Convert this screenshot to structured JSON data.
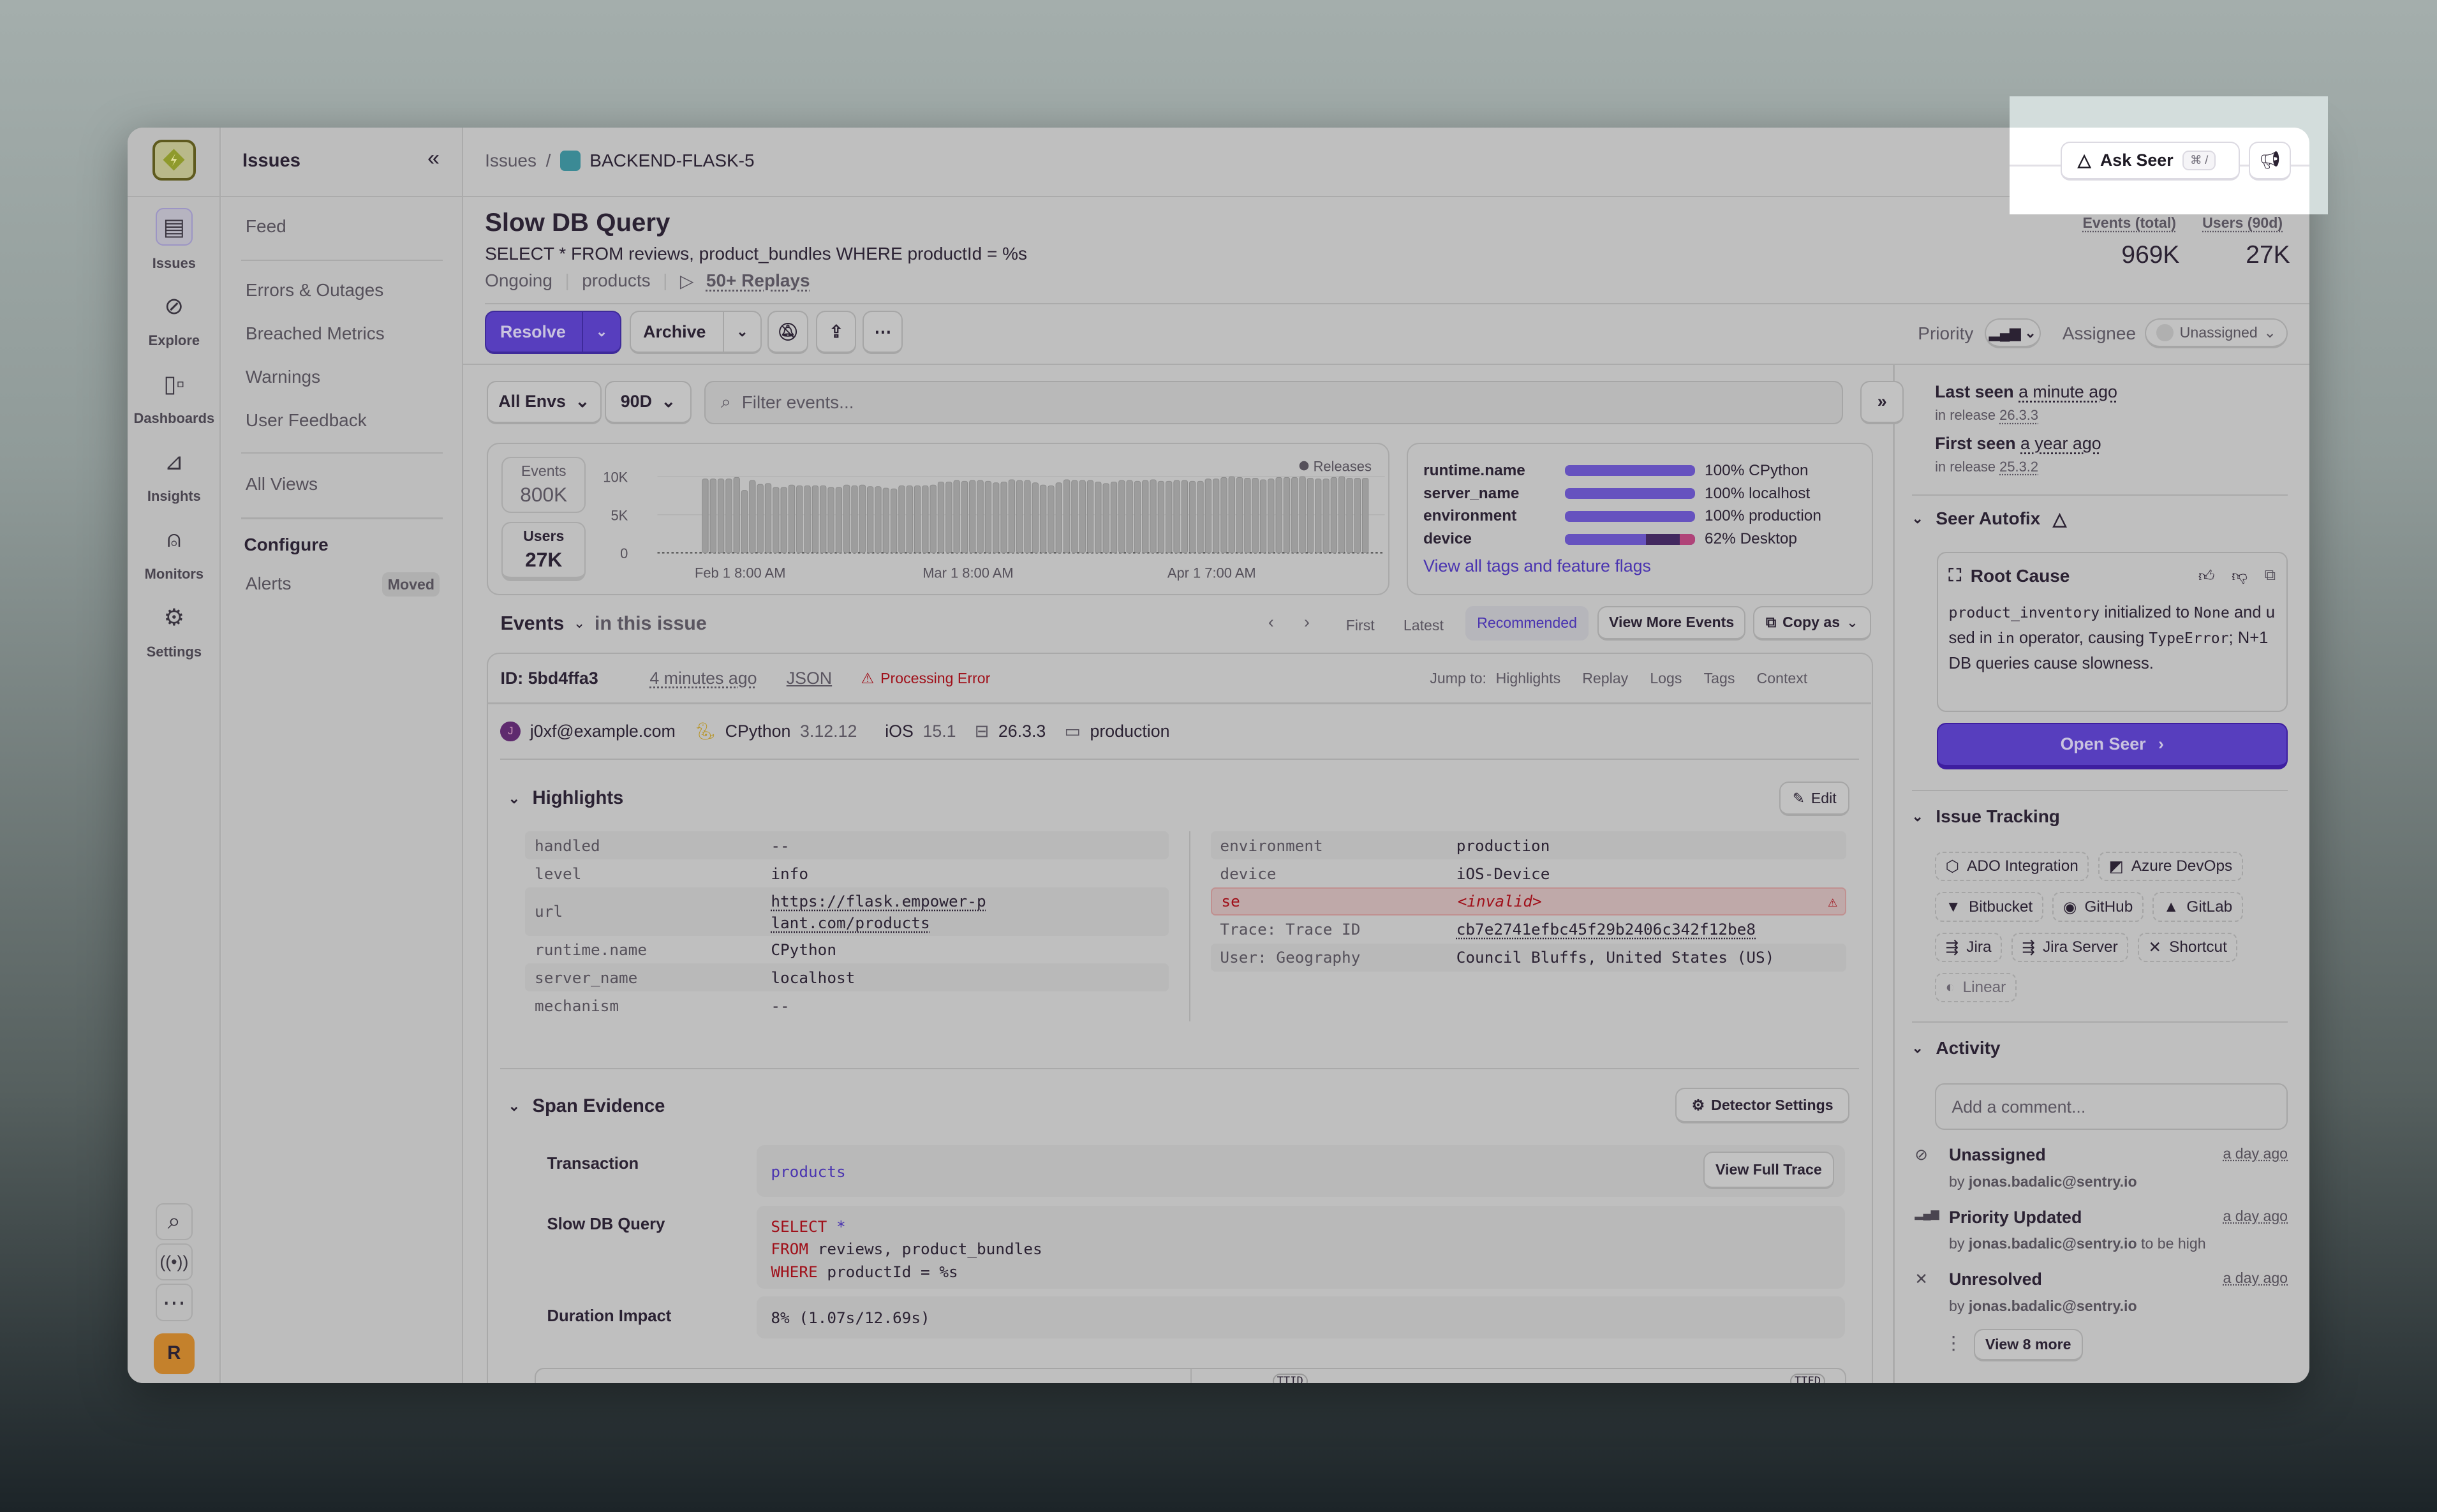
{
  "rail": {
    "items": [
      {
        "label": "Issues",
        "icon": "inbox-icon"
      },
      {
        "label": "Explore",
        "icon": "compass-icon"
      },
      {
        "label": "Dashboards",
        "icon": "dashboard-icon"
      },
      {
        "label": "Insights",
        "icon": "chart-icon"
      },
      {
        "label": "Monitors",
        "icon": "siren-icon"
      },
      {
        "label": "Settings",
        "icon": "gear-icon"
      }
    ],
    "avatar": "R"
  },
  "nav": {
    "title": "Issues",
    "collapse": "«",
    "items": [
      "Feed",
      "Errors & Outages",
      "Breached Metrics",
      "Warnings",
      "User Feedback",
      "All Views"
    ],
    "configure": "Configure",
    "alerts": "Alerts",
    "moved": "Moved"
  },
  "breadcrumb": {
    "root": "Issues",
    "sep": "/",
    "project": "BACKEND-FLASK-5"
  },
  "topbar": {
    "ask_seer": "Ask Seer",
    "shortcut": "⌘ /"
  },
  "issue": {
    "title": "Slow DB Query",
    "subtitle": "SELECT * FROM reviews, product_bundles WHERE productId = %s",
    "status": "Ongoing",
    "transaction": "products",
    "replays": "50+ Replays",
    "events_label": "Events (total)",
    "events_value": "969K",
    "users_label": "Users (90d)",
    "users_value": "27K"
  },
  "actions": {
    "resolve": "Resolve",
    "archive": "Archive",
    "priority_label": "Priority",
    "assignee_label": "Assignee",
    "assignee_value": "Unassigned"
  },
  "filters": {
    "env": "All Envs",
    "period": "90D",
    "search_placeholder": "Filter events..."
  },
  "stats": {
    "events_label": "Events",
    "events_value": "800K",
    "users_label": "Users",
    "users_value": "27K"
  },
  "chart_data": {
    "type": "bar",
    "legend": "Releases",
    "ylim": [
      0,
      10000
    ],
    "y_ticks": [
      {
        "value": 0,
        "label": "0"
      },
      {
        "value": 5000,
        "label": "5K"
      },
      {
        "value": 10000,
        "label": "10K"
      }
    ],
    "x_ticks": [
      {
        "bar_index": 4,
        "label": "Feb 1 8:00 AM"
      },
      {
        "bar_index": 33,
        "label": "Mar 1 8:00 AM"
      },
      {
        "bar_index": 64,
        "label": "Apr 1 7:00 AM"
      }
    ],
    "values": [
      0,
      0,
      0,
      0,
      9700,
      9700,
      9700,
      9700,
      9900,
      8200,
      9500,
      9000,
      9100,
      8600,
      8600,
      8900,
      8800,
      8800,
      8800,
      8800,
      8600,
      8600,
      8900,
      8800,
      8900,
      8700,
      8700,
      8500,
      8400,
      8800,
      8800,
      8800,
      8800,
      8900,
      9300,
      9300,
      9500,
      9400,
      9500,
      9500,
      9400,
      9200,
      9300,
      9600,
      9500,
      9500,
      9200,
      8900,
      8800,
      9200,
      9600,
      9500,
      9500,
      9500,
      9300,
      9100,
      9300,
      9500,
      9500,
      9400,
      9500,
      9600,
      9400,
      9400,
      9500,
      9500,
      9400,
      9400,
      9700,
      9700,
      9900,
      10000,
      9900,
      9800,
      9800,
      9600,
      9700,
      9900,
      9900,
      9900,
      10000,
      9800,
      9700,
      9700,
      9900,
      10000,
      9800,
      9800,
      9800
    ],
    "grid": true
  },
  "tags": {
    "rows": [
      {
        "key": "runtime.name",
        "pct": 100,
        "value": "100% CPython"
      },
      {
        "key": "server_name",
        "pct": 100,
        "value": "100% localhost"
      },
      {
        "key": "environment",
        "pct": 100,
        "value": "100% production"
      },
      {
        "key": "device",
        "pct": 62,
        "value": "62% Desktop",
        "segments": [
          62,
          26,
          12
        ]
      }
    ],
    "link": "View all tags and feature flags",
    "colors": [
      "#6652bf",
      "#42285f",
      "#b04378"
    ]
  },
  "events": {
    "title": "Events",
    "scope": "in this issue",
    "first": "First",
    "latest": "Latest",
    "recommended": "Recommended",
    "view_more": "View More Events",
    "copy_as": "Copy as"
  },
  "event": {
    "id": "ID: 5bd4ffa3",
    "time": "4 minutes ago",
    "json": "JSON",
    "error": "Processing Error",
    "jump_label": "Jump to:",
    "jump": [
      "Highlights",
      "Replay",
      "Logs",
      "Tags",
      "Context"
    ],
    "user": "j0xf@example.com",
    "user_initial": "J",
    "runtime": "CPython",
    "runtime_ver": "3.12.12",
    "os": "iOS",
    "os_ver": "15.1",
    "release": "26.3.3",
    "env": "production"
  },
  "highlights": {
    "title": "Highlights",
    "edit": "Edit",
    "left": [
      {
        "k": "handled",
        "v": "--"
      },
      {
        "k": "level",
        "v": "info"
      },
      {
        "k": "url",
        "v": "https://flask.empower-plant.com/products"
      },
      {
        "k": "runtime.name",
        "v": "CPython"
      },
      {
        "k": "server_name",
        "v": "localhost"
      },
      {
        "k": "mechanism",
        "v": "--"
      }
    ],
    "right": [
      {
        "k": "environment",
        "v": "production"
      },
      {
        "k": "device",
        "v": "iOS-Device"
      },
      {
        "k": "se",
        "v": "<invalid>"
      },
      {
        "k": "Trace: Trace ID",
        "v": "cb7e2741efbc45f29b2406c342f12be8"
      },
      {
        "k": "User: Geography",
        "v": "Council Bluffs, United States (US)"
      }
    ]
  },
  "span": {
    "title": "Span Evidence",
    "detector": "Detector Settings",
    "transaction_label": "Transaction",
    "transaction": "products",
    "view_trace": "View Full Trace",
    "query_label": "Slow DB Query",
    "query": [
      {
        "kw": "SELECT",
        "rest": "*"
      },
      {
        "kw": "FROM",
        "rest": "reviews, product_bundles"
      },
      {
        "kw": "WHERE",
        "rest": "productId = %s"
      }
    ],
    "duration_label": "Duration Impact",
    "duration": "8% (1.07s/12.69s)",
    "ttid": "TTID",
    "ttfd": "TTFD"
  },
  "side": {
    "last_seen": "Last seen",
    "last_seen_v": "a minute ago",
    "last_rel": "in release",
    "last_rel_v": "26.3.3",
    "first_seen": "First seen",
    "first_seen_v": "a year ago",
    "first_rel": "in release",
    "first_rel_v": "25.3.2",
    "autofix": "Seer Autofix",
    "root_cause": "Root Cause",
    "rc_code1": "product_inventory",
    "rc_t1": " initialized to ",
    "rc_code2": "None",
    "rc_t2": " and used in ",
    "rc_code3": "in",
    "rc_t3": " operator, causing ",
    "rc_code4": "TypeError",
    "rc_t4": "; N+1 DB queries cause slowness.",
    "open_seer": "Open Seer",
    "tracking": "Issue Tracking",
    "integrations": [
      "ADO Integration",
      "Azure DevOps",
      "Bitbucket",
      "GitHub",
      "GitLab",
      "Jira",
      "Jira Server",
      "Shortcut",
      "Linear"
    ],
    "activity": "Activity",
    "comment_placeholder": "Add a comment...",
    "items": [
      {
        "title": "Unassigned",
        "by": "by",
        "who": "jonas.badalic@sentry.io",
        "extra": "",
        "ts": "a day ago",
        "icon": "unassign-icon"
      },
      {
        "title": "Priority Updated",
        "by": "by",
        "who": "jonas.badalic@sentry.io",
        "extra": " to be high",
        "ts": "a day ago",
        "icon": "priority-icon"
      },
      {
        "title": "Unresolved",
        "by": "by",
        "who": "jonas.badalic@sentry.io",
        "extra": "",
        "ts": "a day ago",
        "icon": "x-icon"
      }
    ],
    "view_more": "View 8 more"
  }
}
